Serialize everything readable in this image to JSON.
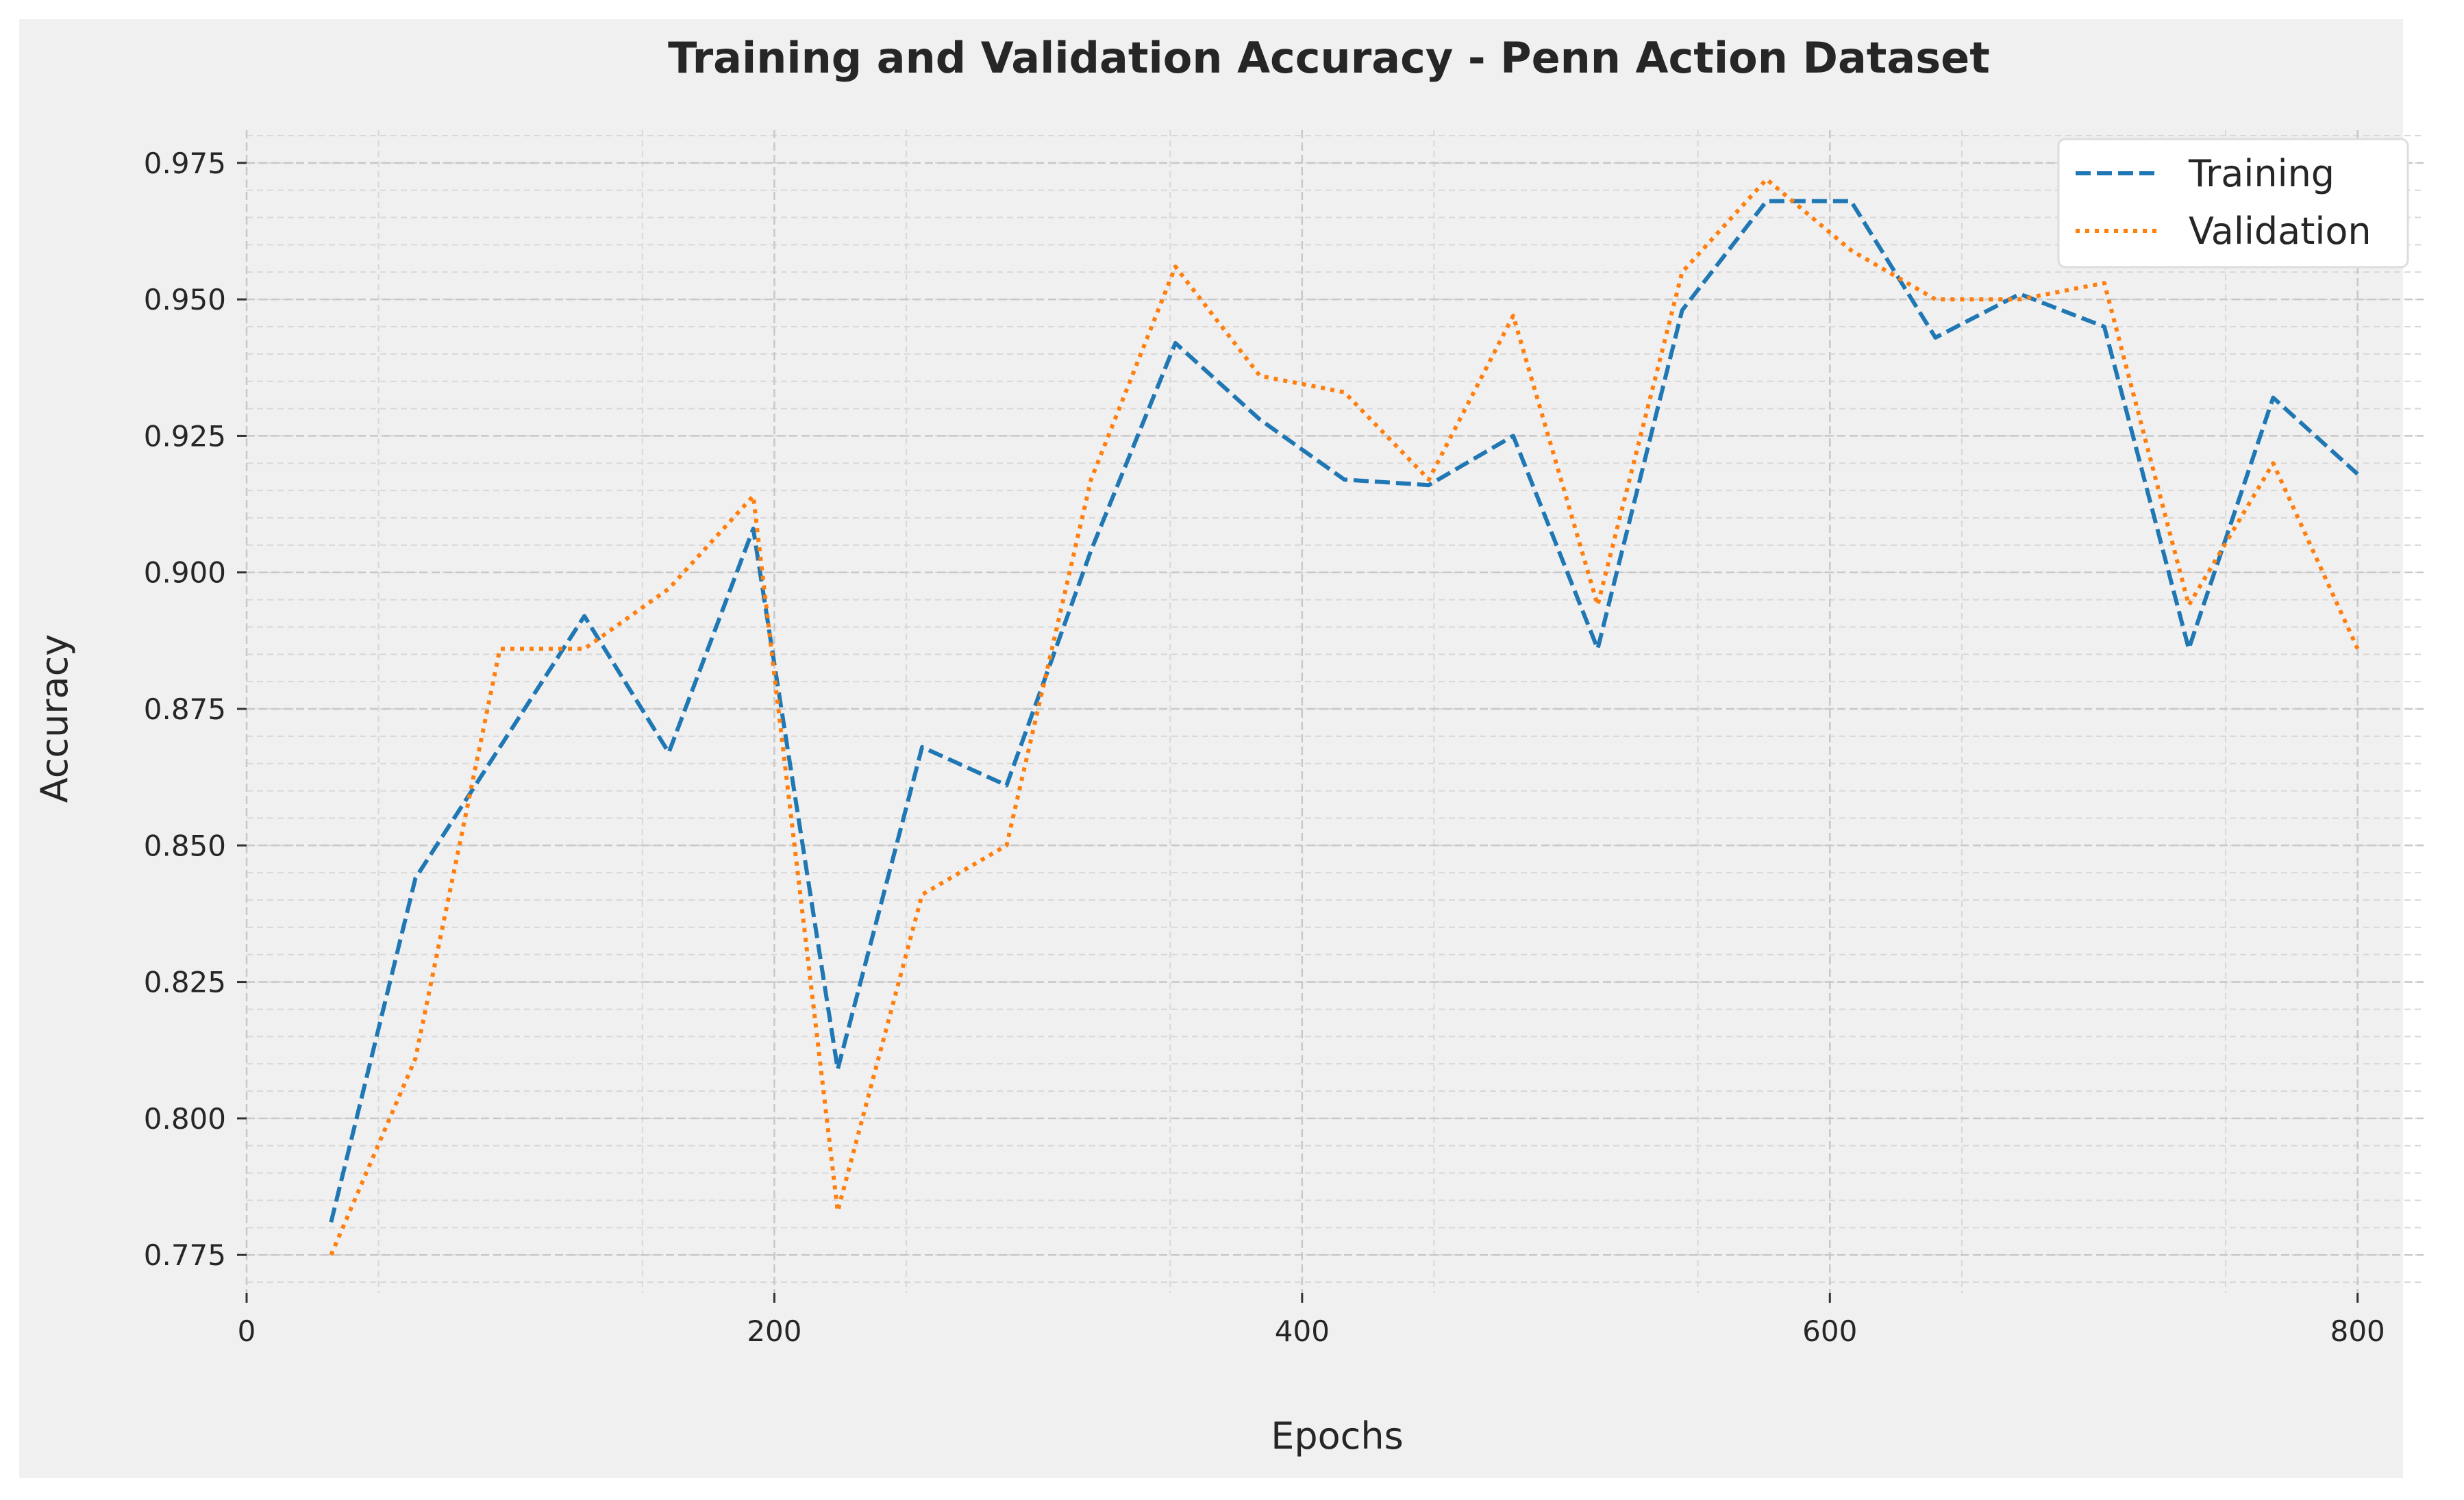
{
  "chart_data": {
    "type": "line",
    "title": "Training and Validation Accuracy - Penn Action Dataset",
    "xlabel": "Epochs",
    "ylabel": "Accuracy",
    "xlim": [
      0,
      825
    ],
    "ylim": [
      0.768,
      0.981
    ],
    "xticks": [
      0,
      200,
      400,
      600,
      800
    ],
    "xtick_labels": [
      "0",
      "200",
      "400",
      "600",
      "800"
    ],
    "yticks": [
      0.775,
      0.8,
      0.825,
      0.85,
      0.875,
      0.9,
      0.925,
      0.95,
      0.975
    ],
    "ytick_labels": [
      "0.775",
      "0.800",
      "0.825",
      "0.850",
      "0.875",
      "0.900",
      "0.925",
      "0.950",
      "0.975"
    ],
    "grid": true,
    "legend_position": "top-right",
    "x": [
      32,
      64,
      96,
      128,
      160,
      192,
      224,
      256,
      288,
      320,
      352,
      384,
      416,
      448,
      480,
      512,
      544,
      576,
      608,
      640,
      672,
      704,
      736,
      768,
      800
    ],
    "series": [
      {
        "name": "Training",
        "color": "#1f77b4",
        "style": "dashed",
        "values": [
          0.781,
          0.844,
          0.868,
          0.892,
          0.867,
          0.908,
          0.809,
          0.868,
          0.861,
          0.904,
          0.942,
          0.928,
          0.917,
          0.916,
          0.925,
          0.886,
          0.948,
          0.968,
          0.968,
          0.943,
          0.951,
          0.945,
          0.886,
          0.932,
          0.918
        ]
      },
      {
        "name": "Validation",
        "color": "#ff7f0e",
        "style": "dotted",
        "values": [
          0.775,
          0.811,
          0.886,
          0.886,
          0.897,
          0.914,
          0.783,
          0.841,
          0.85,
          0.917,
          0.956,
          0.936,
          0.933,
          0.917,
          0.947,
          0.894,
          0.955,
          0.972,
          0.959,
          0.95,
          0.95,
          0.953,
          0.894,
          0.92,
          0.886
        ]
      }
    ]
  }
}
